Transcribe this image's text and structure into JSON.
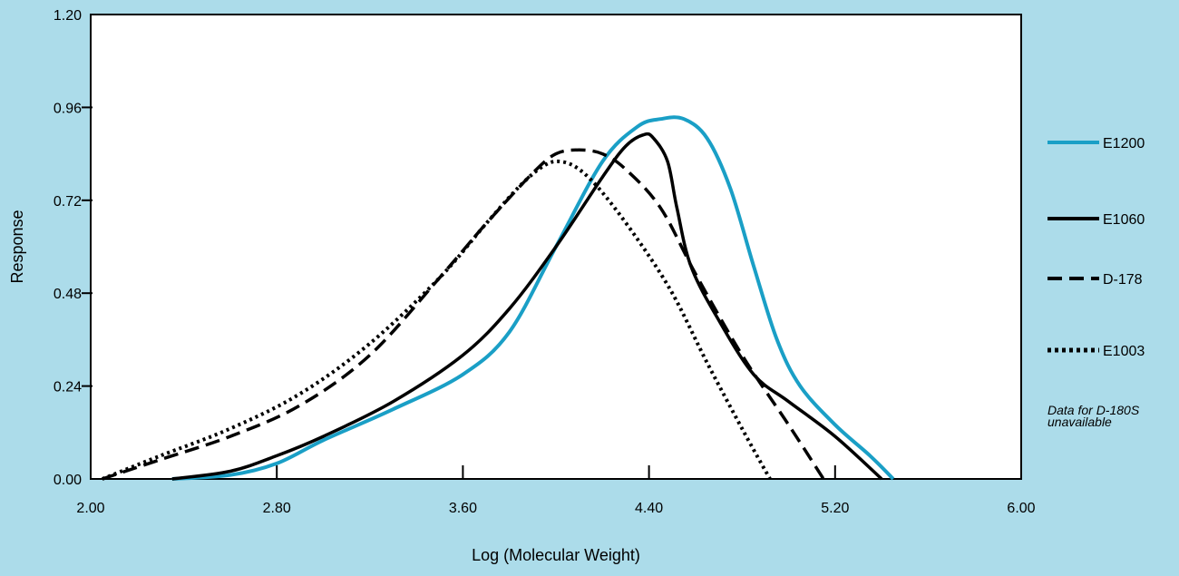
{
  "chart_data": {
    "type": "line",
    "xlabel": "Log (Molecular Weight)",
    "ylabel": "Response",
    "xlim": [
      2.0,
      6.0
    ],
    "ylim": [
      0.0,
      1.2
    ],
    "x_ticks": [
      "2.00",
      "2.80",
      "3.60",
      "4.40",
      "5.20",
      "6.00"
    ],
    "y_ticks": [
      "0.00",
      "0.24",
      "0.48",
      "0.72",
      "0.96",
      "1.20"
    ],
    "grid": false,
    "legend_position": "right",
    "note": "Data for D-180S unavailable",
    "series": [
      {
        "name": "E1200",
        "color": "#1a9fc6",
        "style": "solid",
        "points": [
          [
            2.35,
            0.0
          ],
          [
            2.6,
            0.01
          ],
          [
            2.8,
            0.04
          ],
          [
            3.0,
            0.1
          ],
          [
            3.3,
            0.18
          ],
          [
            3.6,
            0.27
          ],
          [
            3.8,
            0.38
          ],
          [
            4.0,
            0.6
          ],
          [
            4.2,
            0.82
          ],
          [
            4.35,
            0.91
          ],
          [
            4.45,
            0.93
          ],
          [
            4.55,
            0.93
          ],
          [
            4.65,
            0.88
          ],
          [
            4.75,
            0.75
          ],
          [
            4.85,
            0.55
          ],
          [
            4.95,
            0.36
          ],
          [
            5.05,
            0.24
          ],
          [
            5.2,
            0.14
          ],
          [
            5.35,
            0.06
          ],
          [
            5.45,
            0.0
          ]
        ]
      },
      {
        "name": "E1060",
        "color": "#000000",
        "style": "solid",
        "points": [
          [
            2.35,
            0.0
          ],
          [
            2.6,
            0.02
          ],
          [
            2.8,
            0.06
          ],
          [
            3.0,
            0.11
          ],
          [
            3.3,
            0.2
          ],
          [
            3.6,
            0.32
          ],
          [
            3.8,
            0.44
          ],
          [
            4.0,
            0.6
          ],
          [
            4.2,
            0.78
          ],
          [
            4.3,
            0.86
          ],
          [
            4.38,
            0.89
          ],
          [
            4.42,
            0.88
          ],
          [
            4.48,
            0.82
          ],
          [
            4.52,
            0.7
          ],
          [
            4.58,
            0.55
          ],
          [
            4.7,
            0.41
          ],
          [
            4.85,
            0.27
          ],
          [
            5.0,
            0.2
          ],
          [
            5.2,
            0.11
          ],
          [
            5.4,
            0.0
          ]
        ]
      },
      {
        "name": "D-178",
        "color": "#000000",
        "style": "dashed",
        "points": [
          [
            2.05,
            0.0
          ],
          [
            2.3,
            0.05
          ],
          [
            2.6,
            0.11
          ],
          [
            2.9,
            0.19
          ],
          [
            3.2,
            0.32
          ],
          [
            3.5,
            0.52
          ],
          [
            3.7,
            0.66
          ],
          [
            3.9,
            0.79
          ],
          [
            4.0,
            0.84
          ],
          [
            4.1,
            0.85
          ],
          [
            4.2,
            0.84
          ],
          [
            4.3,
            0.8
          ],
          [
            4.45,
            0.7
          ],
          [
            4.6,
            0.53
          ],
          [
            4.8,
            0.32
          ],
          [
            5.0,
            0.14
          ],
          [
            5.15,
            0.0
          ]
        ]
      },
      {
        "name": "E1003",
        "color": "#000000",
        "style": "dotted",
        "points": [
          [
            2.05,
            0.0
          ],
          [
            2.3,
            0.06
          ],
          [
            2.6,
            0.13
          ],
          [
            2.9,
            0.22
          ],
          [
            3.2,
            0.35
          ],
          [
            3.5,
            0.52
          ],
          [
            3.7,
            0.66
          ],
          [
            3.85,
            0.76
          ],
          [
            3.95,
            0.81
          ],
          [
            4.02,
            0.82
          ],
          [
            4.1,
            0.8
          ],
          [
            4.2,
            0.74
          ],
          [
            4.35,
            0.62
          ],
          [
            4.5,
            0.48
          ],
          [
            4.65,
            0.3
          ],
          [
            4.8,
            0.13
          ],
          [
            4.92,
            0.0
          ]
        ]
      }
    ]
  }
}
